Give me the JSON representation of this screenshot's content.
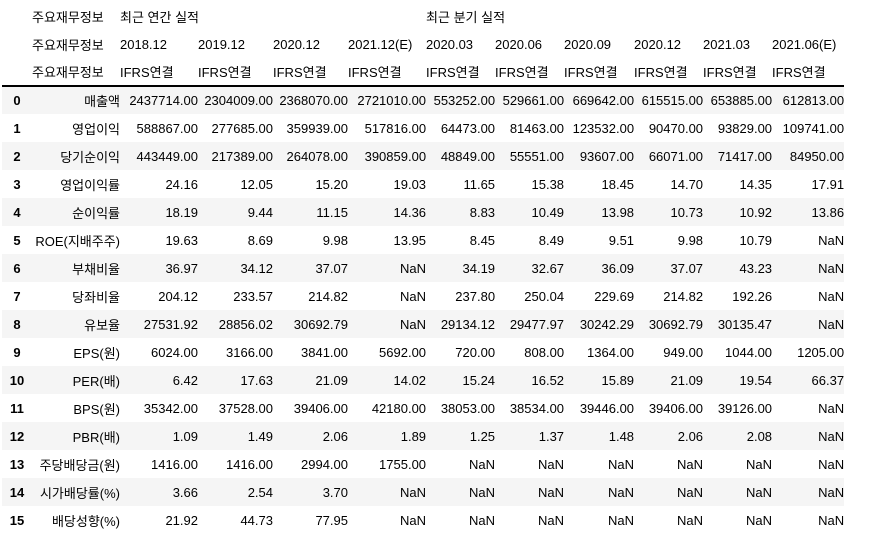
{
  "table": {
    "index_name_header": "주요재무정보",
    "group_headers": [
      {
        "label": "최근 연간 실적",
        "colspan": 4
      },
      {
        "label": "최근 분기 실적",
        "colspan": 6
      }
    ],
    "period_headers": [
      "2018.12",
      "2019.12",
      "2020.12",
      "2021.12(E)",
      "2020.03",
      "2020.06",
      "2020.09",
      "2020.12",
      "2021.03",
      "2021.06(E)"
    ],
    "standard_headers": [
      "IFRS연결",
      "IFRS연결",
      "IFRS연결",
      "IFRS연결",
      "IFRS연결",
      "IFRS연결",
      "IFRS연결",
      "IFRS연결",
      "IFRS연결",
      "IFRS연결"
    ],
    "rows": [
      {
        "index": "0",
        "label": "매출액",
        "values": [
          "2437714.00",
          "2304009.00",
          "2368070.00",
          "2721010.00",
          "553252.00",
          "529661.00",
          "669642.00",
          "615515.00",
          "653885.00",
          "612813.00"
        ]
      },
      {
        "index": "1",
        "label": "영업이익",
        "values": [
          "588867.00",
          "277685.00",
          "359939.00",
          "517816.00",
          "64473.00",
          "81463.00",
          "123532.00",
          "90470.00",
          "93829.00",
          "109741.00"
        ]
      },
      {
        "index": "2",
        "label": "당기순이익",
        "values": [
          "443449.00",
          "217389.00",
          "264078.00",
          "390859.00",
          "48849.00",
          "55551.00",
          "93607.00",
          "66071.00",
          "71417.00",
          "84950.00"
        ]
      },
      {
        "index": "3",
        "label": "영업이익률",
        "values": [
          "24.16",
          "12.05",
          "15.20",
          "19.03",
          "11.65",
          "15.38",
          "18.45",
          "14.70",
          "14.35",
          "17.91"
        ]
      },
      {
        "index": "4",
        "label": "순이익률",
        "values": [
          "18.19",
          "9.44",
          "11.15",
          "14.36",
          "8.83",
          "10.49",
          "13.98",
          "10.73",
          "10.92",
          "13.86"
        ]
      },
      {
        "index": "5",
        "label": "ROE(지배주주)",
        "values": [
          "19.63",
          "8.69",
          "9.98",
          "13.95",
          "8.45",
          "8.49",
          "9.51",
          "9.98",
          "10.79",
          "NaN"
        ]
      },
      {
        "index": "6",
        "label": "부채비율",
        "values": [
          "36.97",
          "34.12",
          "37.07",
          "NaN",
          "34.19",
          "32.67",
          "36.09",
          "37.07",
          "43.23",
          "NaN"
        ]
      },
      {
        "index": "7",
        "label": "당좌비율",
        "values": [
          "204.12",
          "233.57",
          "214.82",
          "NaN",
          "237.80",
          "250.04",
          "229.69",
          "214.82",
          "192.26",
          "NaN"
        ]
      },
      {
        "index": "8",
        "label": "유보율",
        "values": [
          "27531.92",
          "28856.02",
          "30692.79",
          "NaN",
          "29134.12",
          "29477.97",
          "30242.29",
          "30692.79",
          "30135.47",
          "NaN"
        ]
      },
      {
        "index": "9",
        "label": "EPS(원)",
        "values": [
          "6024.00",
          "3166.00",
          "3841.00",
          "5692.00",
          "720.00",
          "808.00",
          "1364.00",
          "949.00",
          "1044.00",
          "1205.00"
        ]
      },
      {
        "index": "10",
        "label": "PER(배)",
        "values": [
          "6.42",
          "17.63",
          "21.09",
          "14.02",
          "15.24",
          "16.52",
          "15.89",
          "21.09",
          "19.54",
          "66.37"
        ]
      },
      {
        "index": "11",
        "label": "BPS(원)",
        "values": [
          "35342.00",
          "37528.00",
          "39406.00",
          "42180.00",
          "38053.00",
          "38534.00",
          "39446.00",
          "39406.00",
          "39126.00",
          "NaN"
        ]
      },
      {
        "index": "12",
        "label": "PBR(배)",
        "values": [
          "1.09",
          "1.49",
          "2.06",
          "1.89",
          "1.25",
          "1.37",
          "1.48",
          "2.06",
          "2.08",
          "NaN"
        ]
      },
      {
        "index": "13",
        "label": "주당배당금(원)",
        "values": [
          "1416.00",
          "1416.00",
          "2994.00",
          "1755.00",
          "NaN",
          "NaN",
          "NaN",
          "NaN",
          "NaN",
          "NaN"
        ]
      },
      {
        "index": "14",
        "label": "시가배당률(%)",
        "values": [
          "3.66",
          "2.54",
          "3.70",
          "NaN",
          "NaN",
          "NaN",
          "NaN",
          "NaN",
          "NaN",
          "NaN"
        ]
      },
      {
        "index": "15",
        "label": "배당성향(%)",
        "values": [
          "21.92",
          "44.73",
          "77.95",
          "NaN",
          "NaN",
          "NaN",
          "NaN",
          "NaN",
          "NaN",
          "NaN"
        ]
      }
    ],
    "colors": {
      "stripe": "#f5f5f5",
      "header_rule": "#000000",
      "text": "#000000",
      "background": "#ffffff"
    }
  }
}
